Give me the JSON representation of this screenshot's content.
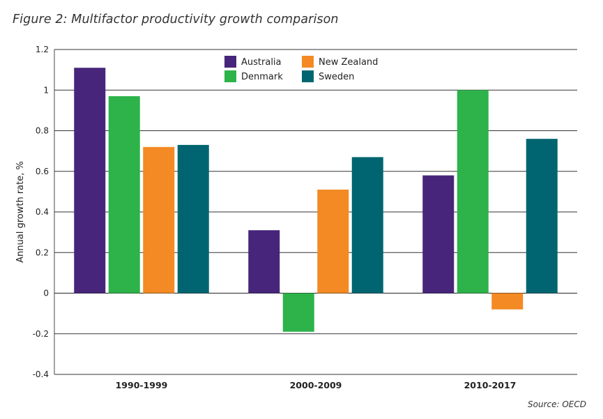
{
  "figure": {
    "title": "Figure 2: Multifactor productivity growth comparison",
    "source": "Source: OECD"
  },
  "chart_data": {
    "type": "bar",
    "title": "Figure 2: Multifactor productivity growth comparison",
    "xlabel": "",
    "ylabel": "Annual growth rate, %",
    "categories": [
      "1990-1999",
      "2000-2009",
      "2010-2017"
    ],
    "ylim": [
      -0.4,
      1.2
    ],
    "yticks": [
      -0.4,
      -0.2,
      0,
      0.2,
      0.4,
      0.6,
      0.8,
      1,
      1.2
    ],
    "ytick_labels": [
      "-0.4",
      "-0.2",
      "0",
      "0.2",
      "0.4",
      "0.6",
      "0.8",
      "1",
      "1.2"
    ],
    "grid": true,
    "legend_position": "top-center",
    "series": [
      {
        "name": "Australia",
        "color": "#46257a",
        "values": [
          1.11,
          0.31,
          0.58
        ]
      },
      {
        "name": "Denmark",
        "color": "#2db34a",
        "values": [
          0.97,
          -0.19,
          1.0
        ]
      },
      {
        "name": "New Zealand",
        "color": "#f38a23",
        "values": [
          0.72,
          0.51,
          -0.08
        ]
      },
      {
        "name": "Sweden",
        "color": "#006570",
        "values": [
          0.73,
          0.67,
          0.76
        ]
      }
    ]
  }
}
